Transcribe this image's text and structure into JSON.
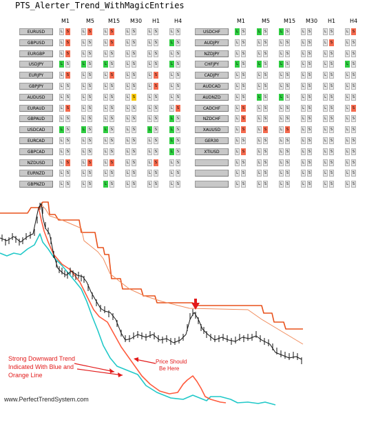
{
  "title": "PTS_Alerter_Trend_WithMagicEntries",
  "timeframes": [
    "M1",
    "M5",
    "M15",
    "M30",
    "H1",
    "H4"
  ],
  "colors": {
    "red": "#f46a4e",
    "green": "#2ecc40",
    "yellow": "#f5c400",
    "grey": "#e2e2e2",
    "price": "#111111",
    "upper1": "#e8501a",
    "upper2": "#f08a5a",
    "blue": "#1fc8c8",
    "orange": "#ff5a3c",
    "annotation": "#e21a1a"
  },
  "panels": [
    {
      "rows": [
        {
          "symbol": "EURUSD",
          "cells": [
            {
              "L": "",
              "S": "red"
            },
            {
              "L": "",
              "S": "red"
            },
            {
              "L": "",
              "S": "red"
            },
            {
              "L": "",
              "S": ""
            },
            {
              "L": "",
              "S": ""
            },
            {
              "L": "",
              "S": ""
            }
          ]
        },
        {
          "symbol": "GBPUSD",
          "cells": [
            {
              "L": "",
              "S": "red"
            },
            {
              "L": "",
              "S": ""
            },
            {
              "L": "",
              "S": "red"
            },
            {
              "L": "",
              "S": ""
            },
            {
              "L": "",
              "S": ""
            },
            {
              "L": "green",
              "S": ""
            }
          ]
        },
        {
          "symbol": "EURGBP",
          "cells": [
            {
              "L": "",
              "S": ""
            },
            {
              "L": "",
              "S": ""
            },
            {
              "L": "",
              "S": ""
            },
            {
              "L": "",
              "S": ""
            },
            {
              "L": "",
              "S": ""
            },
            {
              "L": "",
              "S": ""
            }
          ],
          "extra": {
            "col": 0,
            "which": "S",
            "color": "red"
          }
        },
        {
          "symbol": "USDJPY",
          "cells": [
            {
              "L": "green",
              "S": ""
            },
            {
              "L": "green",
              "S": ""
            },
            {
              "L": "green",
              "S": ""
            },
            {
              "L": "",
              "S": ""
            },
            {
              "L": "",
              "S": ""
            },
            {
              "L": "green",
              "S": ""
            }
          ]
        },
        {
          "symbol": "EURJPY",
          "cells": [
            {
              "L": "",
              "S": "red"
            },
            {
              "L": "",
              "S": ""
            },
            {
              "L": "",
              "S": "red"
            },
            {
              "L": "",
              "S": ""
            },
            {
              "L": "",
              "S": "red"
            },
            {
              "L": "",
              "S": ""
            }
          ]
        },
        {
          "symbol": "GBPJPY",
          "cells": [
            {
              "L": "",
              "S": ""
            },
            {
              "L": "",
              "S": ""
            },
            {
              "L": "",
              "S": ""
            },
            {
              "L": "",
              "S": ""
            },
            {
              "L": "",
              "S": "red"
            },
            {
              "L": "",
              "S": ""
            }
          ]
        },
        {
          "symbol": "AUDUSD",
          "cells": [
            {
              "L": "",
              "S": ""
            },
            {
              "L": "",
              "S": ""
            },
            {
              "L": "",
              "S": ""
            },
            {
              "L": "",
              "S": "yellow"
            },
            {
              "L": "",
              "S": ""
            },
            {
              "L": "",
              "S": ""
            }
          ]
        },
        {
          "symbol": "EURAUD",
          "cells": [
            {
              "L": "",
              "S": "red"
            },
            {
              "L": "",
              "S": ""
            },
            {
              "L": "",
              "S": ""
            },
            {
              "L": "",
              "S": ""
            },
            {
              "L": "",
              "S": ""
            },
            {
              "L": "",
              "S": "red"
            }
          ]
        },
        {
          "symbol": "GBPAUD",
          "cells": [
            {
              "L": "",
              "S": ""
            },
            {
              "L": "",
              "S": ""
            },
            {
              "L": "",
              "S": ""
            },
            {
              "L": "",
              "S": ""
            },
            {
              "L": "",
              "S": ""
            },
            {
              "L": "green",
              "S": ""
            }
          ]
        },
        {
          "symbol": "USDCAD",
          "cells": [
            {
              "L": "green",
              "S": ""
            },
            {
              "L": "green",
              "S": ""
            },
            {
              "L": "green",
              "S": ""
            },
            {
              "L": "",
              "S": ""
            },
            {
              "L": "green",
              "S": ""
            },
            {
              "L": "green",
              "S": ""
            }
          ]
        },
        {
          "symbol": "EURCAD",
          "cells": [
            {
              "L": "",
              "S": ""
            },
            {
              "L": "",
              "S": ""
            },
            {
              "L": "",
              "S": ""
            },
            {
              "L": "",
              "S": ""
            },
            {
              "L": "",
              "S": ""
            },
            {
              "L": "green",
              "S": ""
            }
          ]
        },
        {
          "symbol": "GBPCAD",
          "cells": [
            {
              "L": "",
              "S": ""
            },
            {
              "L": "",
              "S": ""
            },
            {
              "L": "",
              "S": ""
            },
            {
              "L": "",
              "S": ""
            },
            {
              "L": "",
              "S": ""
            },
            {
              "L": "green",
              "S": ""
            }
          ]
        },
        {
          "symbol": "NZDUSD",
          "cells": [
            {
              "L": "",
              "S": "red"
            },
            {
              "L": "",
              "S": "red"
            },
            {
              "L": "",
              "S": "red"
            },
            {
              "L": "",
              "S": ""
            },
            {
              "L": "",
              "S": "red"
            },
            {
              "L": "",
              "S": ""
            }
          ]
        },
        {
          "symbol": "EURNZD",
          "cells": [
            {
              "L": "",
              "S": ""
            },
            {
              "L": "",
              "S": ""
            },
            {
              "L": "",
              "S": ""
            },
            {
              "L": "",
              "S": ""
            },
            {
              "L": "",
              "S": ""
            },
            {
              "L": "",
              "S": ""
            }
          ]
        },
        {
          "symbol": "GBPNZD",
          "cells": [
            {
              "L": "",
              "S": ""
            },
            {
              "L": "",
              "S": ""
            },
            {
              "L": "green",
              "S": ""
            },
            {
              "L": "",
              "S": ""
            },
            {
              "L": "",
              "S": ""
            },
            {
              "L": "",
              "S": ""
            }
          ]
        }
      ]
    },
    {
      "rows": [
        {
          "symbol": "USDCHF",
          "cells": [
            {
              "L": "green",
              "S": ""
            },
            {
              "L": "green",
              "S": ""
            },
            {
              "L": "green",
              "S": ""
            },
            {
              "L": "",
              "S": ""
            },
            {
              "L": "",
              "S": ""
            },
            {
              "L": "",
              "S": "red"
            }
          ]
        },
        {
          "symbol": "AUDJPY",
          "cells": [
            {
              "L": "",
              "S": ""
            },
            {
              "L": "",
              "S": ""
            },
            {
              "L": "",
              "S": ""
            },
            {
              "L": "",
              "S": ""
            },
            {
              "L": "",
              "S": "red"
            },
            {
              "L": "",
              "S": ""
            }
          ]
        },
        {
          "symbol": "NZDJPY",
          "cells": [
            {
              "L": "",
              "S": ""
            },
            {
              "L": "",
              "S": ""
            },
            {
              "L": "",
              "S": ""
            },
            {
              "L": "",
              "S": ""
            },
            {
              "L": "",
              "S": ""
            },
            {
              "L": "",
              "S": ""
            }
          ]
        },
        {
          "symbol": "CHFJPY",
          "cells": [
            {
              "L": "green",
              "S": ""
            },
            {
              "L": "green",
              "S": ""
            },
            {
              "L": "green",
              "S": ""
            },
            {
              "L": "",
              "S": ""
            },
            {
              "L": "",
              "S": ""
            },
            {
              "L": "green",
              "S": ""
            }
          ]
        },
        {
          "symbol": "CADJPY",
          "cells": [
            {
              "L": "",
              "S": ""
            },
            {
              "L": "",
              "S": ""
            },
            {
              "L": "",
              "S": ""
            },
            {
              "L": "",
              "S": ""
            },
            {
              "L": "",
              "S": ""
            },
            {
              "L": "",
              "S": ""
            }
          ]
        },
        {
          "symbol": "AUDCAD",
          "cells": [
            {
              "L": "",
              "S": ""
            },
            {
              "L": "",
              "S": ""
            },
            {
              "L": "",
              "S": ""
            },
            {
              "L": "",
              "S": ""
            },
            {
              "L": "",
              "S": ""
            },
            {
              "L": "",
              "S": ""
            }
          ]
        },
        {
          "symbol": "AUDNZD",
          "cells": [
            {
              "L": "",
              "S": ""
            },
            {
              "L": "green",
              "S": ""
            },
            {
              "L": "green",
              "S": ""
            },
            {
              "L": "",
              "S": ""
            },
            {
              "L": "",
              "S": ""
            },
            {
              "L": "",
              "S": ""
            }
          ]
        },
        {
          "symbol": "CADCHF",
          "cells": [
            {
              "L": "",
              "S": "red"
            },
            {
              "L": "",
              "S": ""
            },
            {
              "L": "",
              "S": ""
            },
            {
              "L": "",
              "S": ""
            },
            {
              "L": "",
              "S": ""
            },
            {
              "L": "",
              "S": "red"
            }
          ]
        },
        {
          "symbol": "NZDCHF",
          "cells": [
            {
              "L": "",
              "S": "red"
            },
            {
              "L": "",
              "S": ""
            },
            {
              "L": "",
              "S": ""
            },
            {
              "L": "",
              "S": ""
            },
            {
              "L": "",
              "S": ""
            },
            {
              "L": "",
              "S": ""
            }
          ]
        },
        {
          "symbol": "XAUUSD",
          "cells": [
            {
              "L": "",
              "S": "red"
            },
            {
              "L": "",
              "S": "red"
            },
            {
              "L": "",
              "S": "red"
            },
            {
              "L": "",
              "S": ""
            },
            {
              "L": "",
              "S": ""
            },
            {
              "L": "",
              "S": ""
            }
          ]
        },
        {
          "symbol": "GER30",
          "cells": [
            {
              "L": "",
              "S": ""
            },
            {
              "L": "",
              "S": ""
            },
            {
              "L": "",
              "S": ""
            },
            {
              "L": "",
              "S": ""
            },
            {
              "L": "",
              "S": ""
            },
            {
              "L": "",
              "S": ""
            }
          ]
        },
        {
          "symbol": "XTIUSD",
          "cells": [
            {
              "L": "",
              "S": "red"
            },
            {
              "L": "",
              "S": ""
            },
            {
              "L": "",
              "S": ""
            },
            {
              "L": "",
              "S": ""
            },
            {
              "L": "",
              "S": ""
            },
            {
              "L": "",
              "S": ""
            }
          ]
        },
        {
          "symbol": "",
          "cells": [
            {
              "L": "",
              "S": ""
            },
            {
              "L": "",
              "S": ""
            },
            {
              "L": "",
              "S": ""
            },
            {
              "L": "",
              "S": ""
            },
            {
              "L": "",
              "S": ""
            },
            {
              "L": "",
              "S": ""
            }
          ]
        },
        {
          "symbol": "",
          "cells": [
            {
              "L": "",
              "S": ""
            },
            {
              "L": "",
              "S": ""
            },
            {
              "L": "",
              "S": ""
            },
            {
              "L": "",
              "S": ""
            },
            {
              "L": "",
              "S": ""
            },
            {
              "L": "",
              "S": ""
            }
          ]
        },
        {
          "symbol": "",
          "cells": [
            {
              "L": "",
              "S": ""
            },
            {
              "L": "",
              "S": ""
            },
            {
              "L": "",
              "S": ""
            },
            {
              "L": "",
              "S": ""
            },
            {
              "L": "",
              "S": ""
            },
            {
              "L": "",
              "S": ""
            }
          ]
        }
      ]
    }
  ],
  "cell_letters": {
    "long": "L",
    "short": "S"
  },
  "annotations": {
    "trend_note": [
      "Strong Downward Trend",
      "Indicated With Blue and",
      "Orange Line"
    ],
    "price_note": [
      "Price Should",
      "Be Here"
    ],
    "watermark": "www.PerfectTrendSystem.com"
  }
}
